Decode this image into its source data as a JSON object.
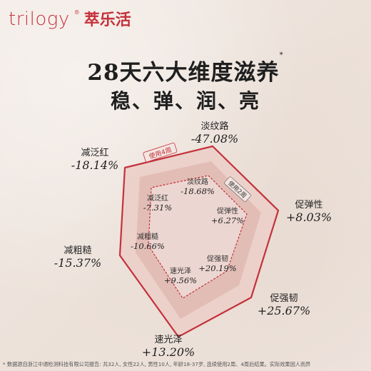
{
  "brand": {
    "name_en": "trilogy",
    "registered": "®",
    "name_cn": "萃乐活"
  },
  "title": {
    "line1": "28天六大维度滋养",
    "marker": "*",
    "line2": "稳、弹、润、亮"
  },
  "tags": {
    "outer": "使用4周",
    "inner": "使用2周"
  },
  "outer_metrics": [
    {
      "name": "淡纹路",
      "value": "-47.08%"
    },
    {
      "name": "促弹性",
      "value": "+8.03%"
    },
    {
      "name": "促强韧",
      "value": "+25.67%"
    },
    {
      "name": "速光泽",
      "value": "+13.20%"
    },
    {
      "name": "减粗糙",
      "value": "-15.37%"
    },
    {
      "name": "减泛红",
      "value": "-18.14%"
    }
  ],
  "inner_metrics": [
    {
      "name": "淡纹路",
      "value": "-18.68%"
    },
    {
      "name": "促弹性",
      "value": "+6.27%"
    },
    {
      "name": "促强韧",
      "value": "+20.19%"
    },
    {
      "name": "速光泽",
      "value": "+9.56%"
    },
    {
      "name": "减粗糙",
      "value": "-10.66%"
    },
    {
      "name": "减泛红",
      "value": "-7.31%"
    }
  ],
  "footnote": "* 数据源自浙江中通检测科技有限公司报告: 共32人, 女性22人, 男性10人, 年龄18-37岁, 连续使用2周、4周后结果。实际效果因人而异",
  "colors": {
    "accent": "#c4313a",
    "fill_outer": "#e7c8c2",
    "fill_inner": "#dcb3ad"
  }
}
